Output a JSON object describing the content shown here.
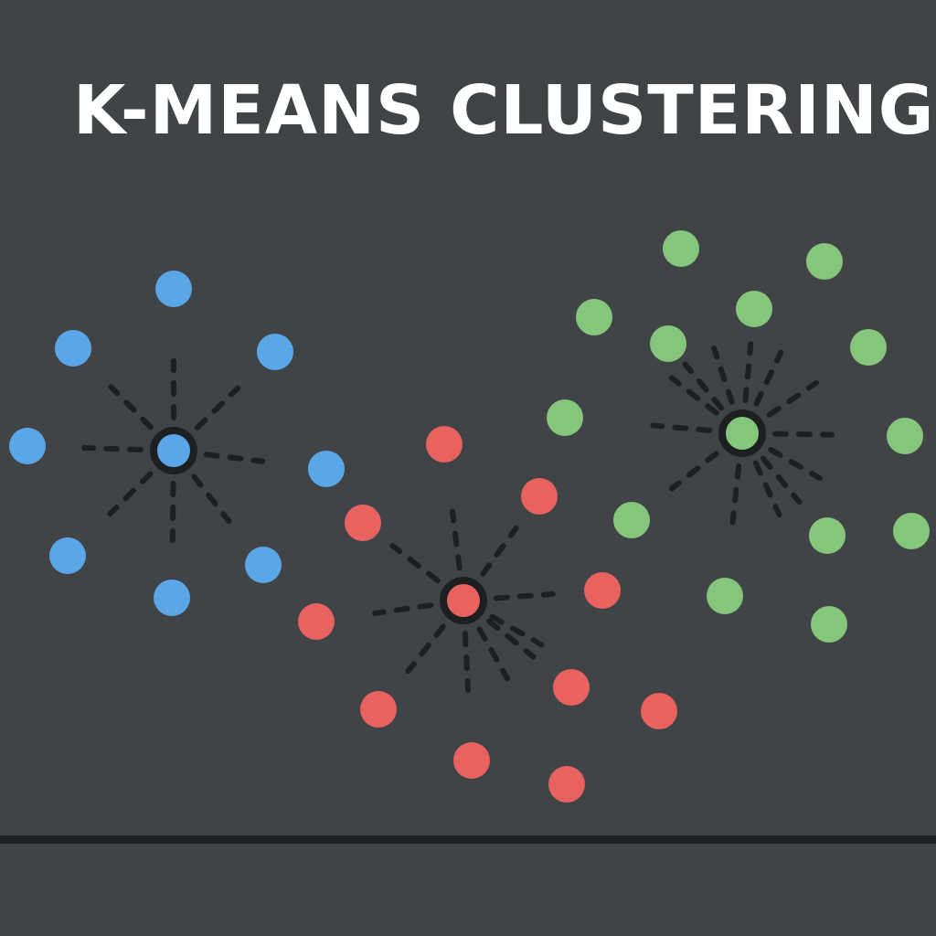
{
  "title": "K-MEANS CLUSTERING",
  "colors": {
    "background": "#414447",
    "connector": "#1d1f21",
    "centroid_ring": "#1d1f21"
  },
  "clusters": [
    {
      "name": "blue",
      "color": "#5aa6e6",
      "centroid": [
        190,
        493
      ],
      "points": [
        [
          190,
          316
        ],
        [
          80,
          381
        ],
        [
          301,
          385
        ],
        [
          30,
          488
        ],
        [
          357,
          513
        ],
        [
          74,
          608
        ],
        [
          288,
          618
        ],
        [
          188,
          654
        ]
      ]
    },
    {
      "name": "red",
      "color": "#e8625f",
      "centroid": [
        507,
        657
      ],
      "points": [
        [
          486,
          486
        ],
        [
          590,
          543
        ],
        [
          397,
          572
        ],
        [
          659,
          646
        ],
        [
          346,
          680
        ],
        [
          625,
          752
        ],
        [
          414,
          776
        ],
        [
          721,
          778
        ],
        [
          516,
          832
        ],
        [
          620,
          858
        ]
      ]
    },
    {
      "name": "green",
      "color": "#86c57c",
      "centroid": [
        812,
        474
      ],
      "points": [
        [
          745,
          272
        ],
        [
          902,
          286
        ],
        [
          825,
          338
        ],
        [
          650,
          347
        ],
        [
          731,
          376
        ],
        [
          950,
          380
        ],
        [
          618,
          457
        ],
        [
          990,
          477
        ],
        [
          691,
          569
        ],
        [
          905,
          586
        ],
        [
          997,
          581
        ],
        [
          793,
          652
        ],
        [
          907,
          683
        ]
      ]
    }
  ]
}
